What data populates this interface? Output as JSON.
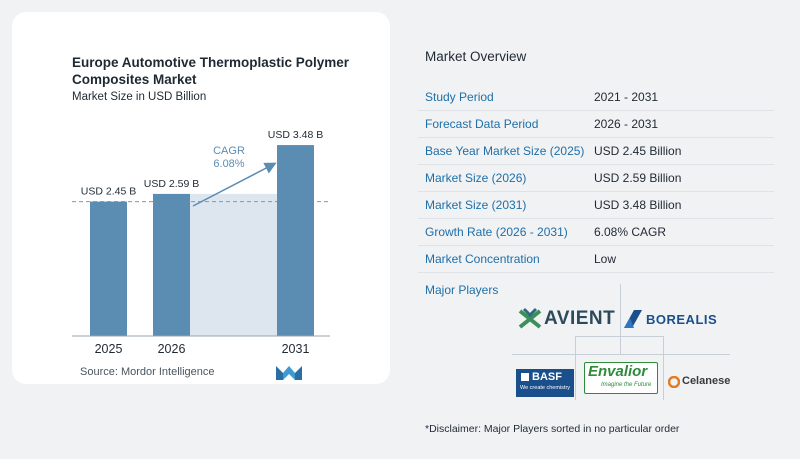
{
  "chart_data": {
    "type": "bar",
    "title": "Europe Automotive Thermoplastic Polymer Composites Market",
    "subtitle": "Market Size in USD Billion",
    "categories": [
      "2025",
      "2026",
      "2031"
    ],
    "values": [
      2.45,
      2.59,
      3.48
    ],
    "data_labels": [
      "USD 2.45 B",
      "USD 2.59 B",
      "USD 3.48 B"
    ],
    "cagr_label": "CAGR",
    "cagr_value": "6.08%",
    "ylim": [
      0,
      3.7
    ],
    "grid": false,
    "colors": {
      "bar": "#5b8db3",
      "shade": "#dde6ef",
      "arrow": "#5b8db3",
      "cagr_text": "#5b8db3"
    }
  },
  "source": "Source:  Mordor Intelligence",
  "overview": {
    "title": "Market Overview",
    "rows": [
      {
        "label": "Study Period",
        "value": "2021 - 2031"
      },
      {
        "label": "Forecast Data Period",
        "value": "2026 - 2031"
      },
      {
        "label": "Base Year Market Size (2025)",
        "value": "USD 2.45 Billion"
      },
      {
        "label": "Market Size (2026)",
        "value": "USD 2.59 Billion"
      },
      {
        "label": "Market Size (2031)",
        "value": "USD 3.48 Billion"
      },
      {
        "label": "Growth Rate (2026 - 2031)",
        "value": "6.08% CAGR"
      },
      {
        "label": "Market Concentration",
        "value": "Low"
      }
    ]
  },
  "players": {
    "title": "Major Players",
    "logos": [
      {
        "name": "AVIENT"
      },
      {
        "name": "BOREALIS"
      },
      {
        "name": "BASF",
        "tagline": "We create chemistry"
      },
      {
        "name": "Envalior",
        "tagline": "Imagine the Future"
      },
      {
        "name": "Celanese"
      }
    ]
  },
  "disclaimer": "*Disclaimer: Major Players sorted in no particular order",
  "colors": {
    "label_blue": "#1e6fa8",
    "envalior_green": "#2e8b3a",
    "basf_blue": "#1a4f8b"
  }
}
